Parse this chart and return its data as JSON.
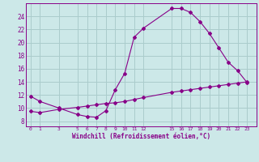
{
  "xlabel": "Windchill (Refroidissement éolien,°C)",
  "background_color": "#cce8e8",
  "grid_color": "#aacccc",
  "line_color": "#880088",
  "x_ticks": [
    0,
    1,
    3,
    5,
    6,
    7,
    8,
    9,
    10,
    11,
    12,
    15,
    16,
    17,
    18,
    19,
    20,
    21,
    22,
    23
  ],
  "y_ticks": [
    8,
    10,
    12,
    14,
    16,
    18,
    20,
    22,
    24
  ],
  "ylim": [
    7.2,
    26.0
  ],
  "xlim": [
    -0.5,
    24.0
  ],
  "line1_x": [
    0,
    1,
    3,
    5,
    6,
    7,
    8,
    9,
    10,
    11,
    12,
    15,
    16,
    17,
    18,
    19,
    20,
    21,
    22,
    23
  ],
  "line1_y": [
    11.8,
    11.0,
    10.0,
    9.0,
    8.7,
    8.6,
    9.6,
    12.8,
    15.3,
    20.8,
    22.2,
    25.2,
    25.2,
    24.6,
    23.2,
    21.4,
    19.2,
    17.0,
    15.7,
    13.9
  ],
  "line2_x": [
    0,
    1,
    3,
    5,
    6,
    7,
    8,
    9,
    10,
    11,
    12,
    15,
    16,
    17,
    18,
    19,
    20,
    21,
    22,
    23
  ],
  "line2_y": [
    9.5,
    9.3,
    9.8,
    10.1,
    10.3,
    10.5,
    10.7,
    10.8,
    11.0,
    11.3,
    11.6,
    12.4,
    12.6,
    12.8,
    13.0,
    13.2,
    13.4,
    13.6,
    13.8,
    14.0
  ]
}
